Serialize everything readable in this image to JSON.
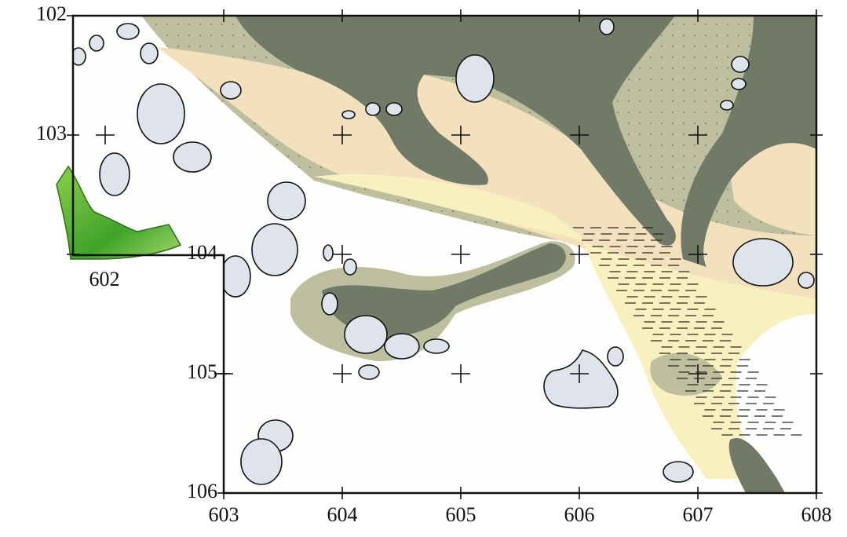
{
  "map": {
    "x_ticks": [
      603,
      604,
      605,
      606,
      607,
      608
    ],
    "y_ticks": [
      102,
      103,
      104,
      105,
      106
    ],
    "area_label": "602"
  }
}
